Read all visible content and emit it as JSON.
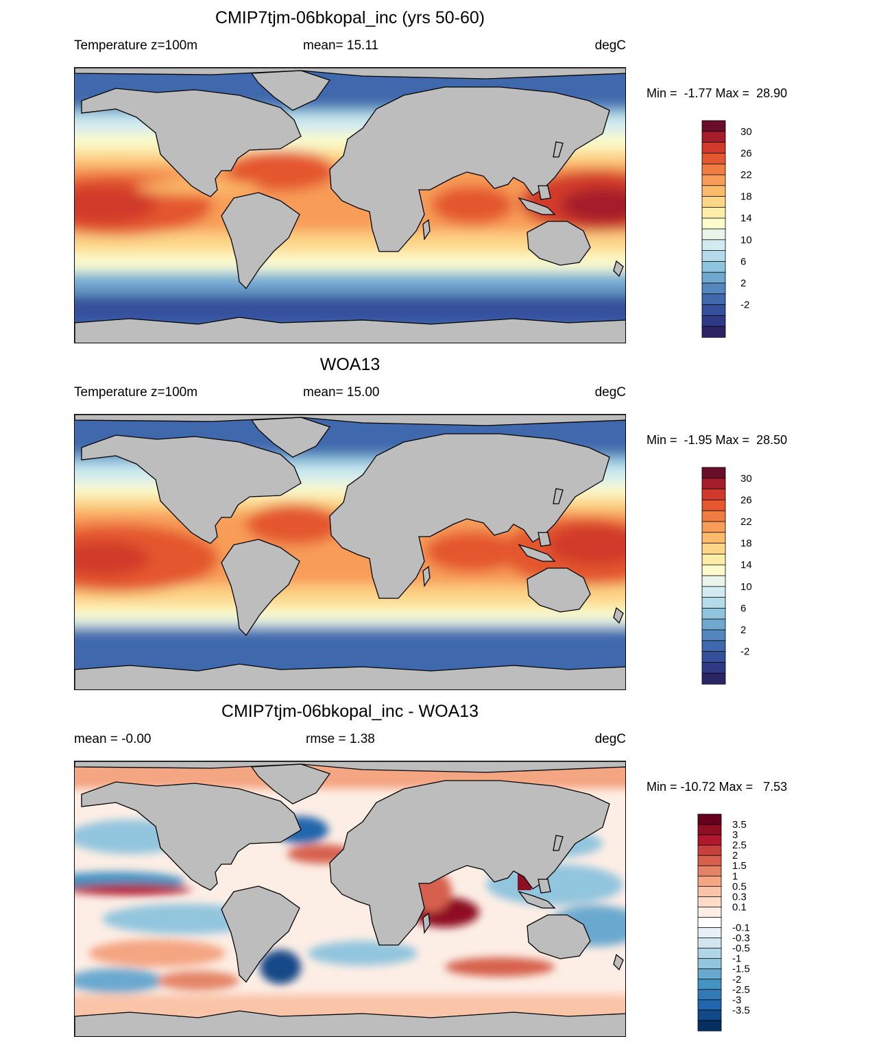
{
  "panels": [
    {
      "title": "CMIP7tjm-06bkopal_inc (yrs 50-60)",
      "left_label": "Temperature z=100m",
      "mid_label": "mean=  15.11",
      "units": "degC",
      "minmax": "Min =  -1.77 Max =  28.90",
      "kind": "temperature",
      "colorbar": {
        "colors": [
          "#6a0d2a",
          "#a51c2b",
          "#d13a2a",
          "#e4572f",
          "#f17c43",
          "#f89d59",
          "#fbbb6b",
          "#fdd688",
          "#feeda7",
          "#fbfbcb",
          "#e9f5e9",
          "#d1ebf0",
          "#b3dbe9",
          "#8fc4de",
          "#6fa7cf",
          "#5387bd",
          "#4069ad",
          "#35509b",
          "#2f3a86",
          "#2b2565"
        ],
        "ticks": [
          "30",
          "26",
          "22",
          "18",
          "14",
          "10",
          "6",
          "2",
          "-2"
        ]
      }
    },
    {
      "title": "WOA13",
      "left_label": "Temperature z=100m",
      "mid_label": "mean=  15.00",
      "units": "degC",
      "minmax": "Min =  -1.95 Max =  28.50",
      "kind": "temperature",
      "colorbar": {
        "colors": [
          "#6a0d2a",
          "#a51c2b",
          "#d13a2a",
          "#e4572f",
          "#f17c43",
          "#f89d59",
          "#fbbb6b",
          "#fdd688",
          "#feeda7",
          "#fbfbcb",
          "#e9f5e9",
          "#d1ebf0",
          "#b3dbe9",
          "#8fc4de",
          "#6fa7cf",
          "#5387bd",
          "#4069ad",
          "#35509b",
          "#2f3a86",
          "#2b2565"
        ],
        "ticks": [
          "30",
          "26",
          "22",
          "18",
          "14",
          "10",
          "6",
          "2",
          "-2"
        ]
      }
    },
    {
      "title": "CMIP7tjm-06bkopal_inc - WOA13",
      "left_label": "mean =  -0.00",
      "mid_label": "rmse =   1.38",
      "units": "degC",
      "minmax": "Min = -10.72 Max =   7.53",
      "kind": "difference",
      "colorbar": {
        "colors": [
          "#67001f",
          "#8e0e24",
          "#b2182b",
          "#c6403e",
          "#d6604d",
          "#e48466",
          "#f4a582",
          "#f9c4a8",
          "#fddbc7",
          "#fdeee5",
          "#ffffff",
          "#e6f0f6",
          "#d1e5f0",
          "#b3d5e8",
          "#92c5de",
          "#6aa9cf",
          "#4393c3",
          "#3279b6",
          "#2166ac",
          "#124a88",
          "#053061"
        ],
        "ticks": [
          "3.5",
          "3",
          "2.5",
          "2",
          "1.5",
          "1",
          "0.5",
          "0.3",
          "0.1",
          "-0.1",
          "-0.3",
          "-0.5",
          "-1",
          "-1.5",
          "-2",
          "-2.5",
          "-3",
          "-3.5"
        ]
      }
    }
  ]
}
